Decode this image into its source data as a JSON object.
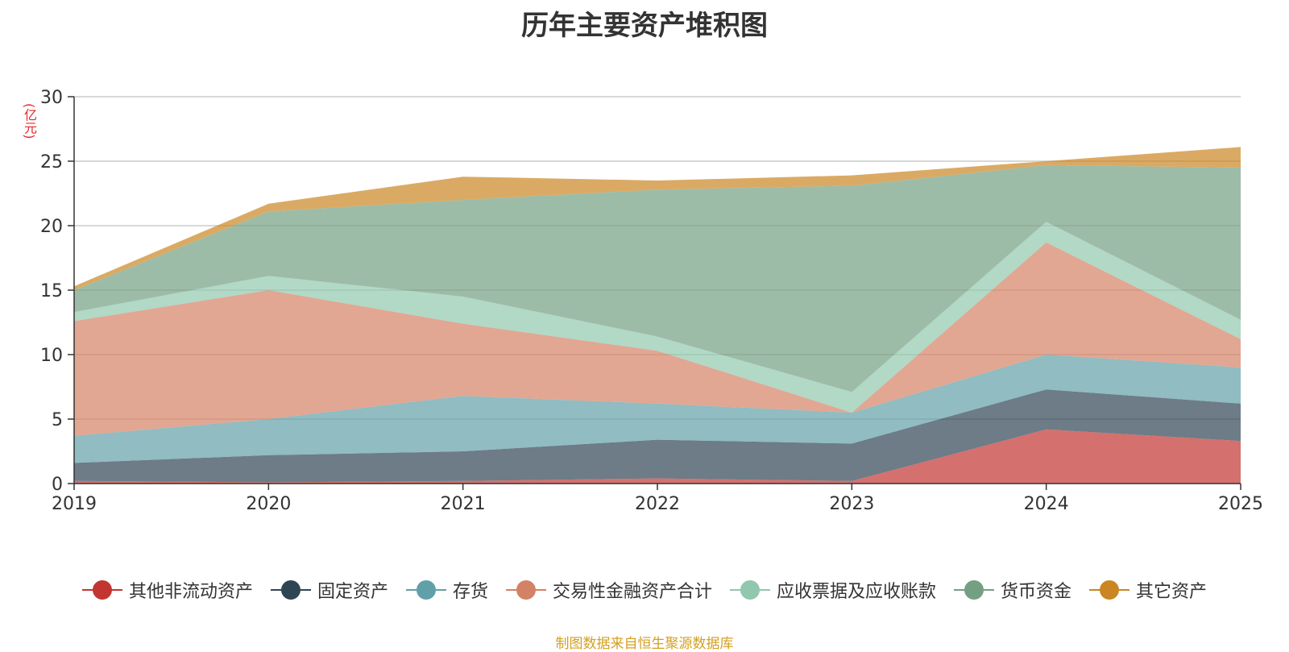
{
  "chart_data": {
    "type": "area",
    "stacked": true,
    "title": "历年主要资产堆积图",
    "unit": "(亿元)",
    "x": [
      "2019",
      "2020",
      "2021",
      "2022",
      "2023",
      "2024",
      "2025"
    ],
    "ylim": [
      0,
      30
    ],
    "yticks": [
      0,
      5,
      10,
      15,
      20,
      25,
      30
    ],
    "grid": true,
    "legend_position": "bottom",
    "series": [
      {
        "name": "其他非流动资产",
        "color": "#c23531",
        "values": [
          0.2,
          0.1,
          0.2,
          0.4,
          0.2,
          4.2,
          3.3
        ]
      },
      {
        "name": "固定资产",
        "color": "#2f4554",
        "values": [
          1.4,
          2.1,
          2.3,
          3.0,
          2.9,
          3.1,
          2.9
        ]
      },
      {
        "name": "存货",
        "color": "#61a0a8",
        "values": [
          2.1,
          2.8,
          4.3,
          2.8,
          2.4,
          2.7,
          2.8
        ]
      },
      {
        "name": "交易性金融资产合计",
        "color": "#d48265",
        "values": [
          8.9,
          10.0,
          5.6,
          4.1,
          0.0,
          8.7,
          2.2
        ]
      },
      {
        "name": "应收票据及应收账款",
        "color": "#91c7ae",
        "values": [
          0.7,
          1.1,
          2.1,
          1.1,
          1.6,
          1.6,
          1.5
        ]
      },
      {
        "name": "货币资金",
        "color": "#749f83",
        "values": [
          1.7,
          5.0,
          7.5,
          11.4,
          16.0,
          4.4,
          11.8
        ]
      },
      {
        "name": "其它资产",
        "color": "#ca8622",
        "values": [
          0.3,
          0.6,
          1.8,
          0.7,
          0.8,
          0.3,
          1.6
        ]
      }
    ]
  },
  "footer": {
    "source": "制图数据来自恒生聚源数据库"
  }
}
